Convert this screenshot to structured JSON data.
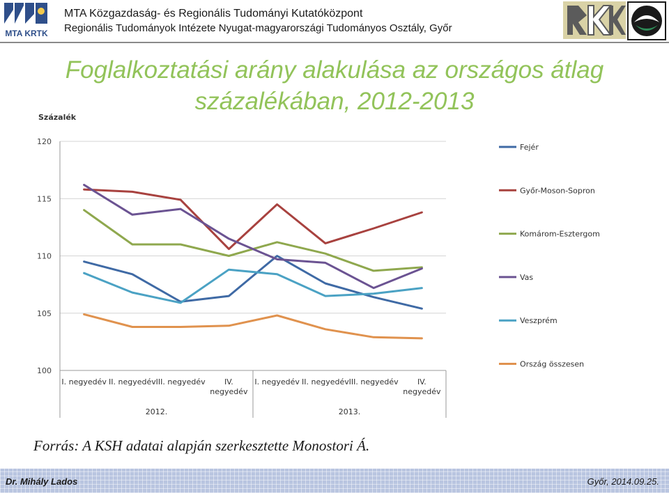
{
  "header": {
    "logo_text": "MTA KRTK",
    "institute_line1": "MTA Közgazdaság- és Regionális Tudományi Kutatóközpont",
    "institute_line2": "Regionális Tudományok Intézete Nyugat-magyarországi Tudományos Osztály, Győr"
  },
  "colors": {
    "title": "#92c35a",
    "Fejér": "#3f6aa5",
    "Győr-Moson-Sopron": "#a8423f",
    "Komárom-Esztergom": "#8fa84e",
    "Vas": "#6b5392",
    "Veszprém": "#4ba2c4",
    "Ország összesen": "#e0924e"
  },
  "chart_data": {
    "type": "line",
    "title": "Foglalkoztatási arány alakulása az országos átlag százalékában, 2012-2013",
    "ylabel": "Százalék",
    "xlabel": "",
    "ylim": [
      100,
      120
    ],
    "yticks": [
      100,
      105,
      110,
      115,
      120
    ],
    "categories": [
      "I. negyedév",
      "II. negyedév",
      "III. negyedév",
      "IV. negyedév",
      "I. negyedév",
      "II. negyedév",
      "III. negyedév",
      "IV. negyedév"
    ],
    "groups": [
      {
        "label": "2012.",
        "span": [
          0,
          3
        ]
      },
      {
        "label": "2013.",
        "span": [
          4,
          7
        ]
      }
    ],
    "grid": true,
    "legend": "right",
    "series": [
      {
        "name": "Fejér",
        "values": [
          109.5,
          108.4,
          106.0,
          106.5,
          110.0,
          107.6,
          106.4,
          105.4
        ]
      },
      {
        "name": "Győr-Moson-Sopron",
        "values": [
          115.8,
          115.6,
          114.9,
          110.6,
          114.5,
          111.1,
          112.4,
          113.8
        ]
      },
      {
        "name": "Komárom-Esztergom",
        "values": [
          114.0,
          111.0,
          111.0,
          110.0,
          111.2,
          110.2,
          108.7,
          109.0
        ]
      },
      {
        "name": "Vas",
        "values": [
          116.2,
          113.6,
          114.1,
          111.5,
          109.7,
          109.4,
          107.2,
          108.9
        ]
      },
      {
        "name": "Veszprém",
        "values": [
          108.5,
          106.8,
          105.9,
          108.8,
          108.4,
          106.5,
          106.7,
          107.2
        ]
      },
      {
        "name": "Ország összesen",
        "values": [
          104.9,
          103.8,
          103.8,
          103.9,
          104.8,
          103.6,
          102.9,
          102.8
        ]
      }
    ]
  },
  "source": "Forrás: A KSH adatai alapján szerkesztette Monostori Á.",
  "footer": {
    "author": "Dr. Mihály Lados",
    "place_date": "Győr, 2014.09.25."
  }
}
